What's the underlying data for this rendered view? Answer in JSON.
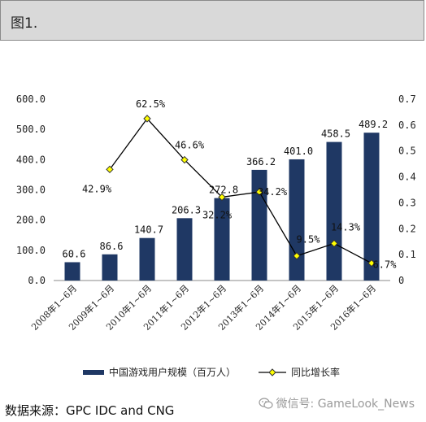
{
  "header": {
    "title": "图1."
  },
  "source": {
    "text": "数据来源：GPC IDC and CNG"
  },
  "watermark": {
    "text": "微信号: GameLook_News",
    "icon": "wechat-icon"
  },
  "colors": {
    "bar": "#1f3864",
    "line": "#000000",
    "marker": "#ffff00",
    "marker_stroke": "#333333"
  },
  "chart_data": {
    "type": "bar",
    "categories": [
      "2008年1~6月",
      "2009年1~6月",
      "2010年1~6月",
      "2011年1~6月",
      "2012年1~6月",
      "2013年1~6月",
      "2014年1~6月",
      "2015年1~6月",
      "2016年1~6月"
    ],
    "series": [
      {
        "name": "中国游戏用户规模（百万人）",
        "type": "bar",
        "axis": "left",
        "values": [
          60.6,
          86.6,
          140.7,
          206.3,
          272.8,
          366.2,
          401.0,
          458.5,
          489.2
        ],
        "labels": [
          "60.6",
          "86.6",
          "140.7",
          "206.3",
          "272.8",
          "366.2",
          "401.0",
          "458.5",
          "489.2"
        ]
      },
      {
        "name": "同比增长率",
        "type": "line",
        "axis": "right",
        "values": [
          null,
          0.429,
          0.625,
          0.466,
          0.322,
          0.342,
          0.095,
          0.143,
          0.067
        ],
        "labels": [
          "",
          "42.9%",
          "62.5%",
          "46.6%",
          "32.2%",
          "34.2%",
          "9.5%",
          "14.3%",
          "6.7%"
        ]
      }
    ],
    "ylim": [
      0,
      600
    ],
    "y2lim": [
      0,
      0.7
    ],
    "yticks": [
      "0.0",
      "100.0",
      "200.0",
      "300.0",
      "400.0",
      "500.0",
      "600.0"
    ],
    "y2ticks": [
      "0",
      "0.1",
      "0.2",
      "0.3",
      "0.4",
      "0.5",
      "0.6",
      "0.7"
    ],
    "grid": false,
    "legend": "bottom"
  }
}
